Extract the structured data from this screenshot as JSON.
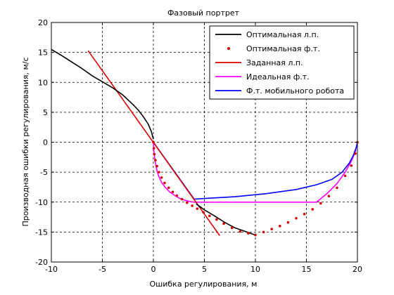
{
  "chart_data": {
    "type": "line",
    "title": "Фазовый портрет",
    "xlabel": "Ошибка регулирования, м",
    "ylabel": "Производная ошибки регулирования, м/с",
    "xlim": [
      -10,
      20
    ],
    "ylim": [
      -20,
      20
    ],
    "xticks": [
      -10,
      -5,
      0,
      5,
      10,
      15,
      20
    ],
    "yticks": [
      20,
      15,
      10,
      5,
      0,
      -5,
      -10,
      -15,
      -20
    ],
    "grid": true,
    "legend_position": "top-right",
    "series": [
      {
        "name": "Оптимальная л.п.",
        "color": "#000000",
        "style": "solid",
        "x": [
          -10,
          -9,
          -8,
          -7,
          -6,
          -5,
          -4,
          -3,
          -2,
          -1.5,
          -1,
          -0.5,
          -0.2,
          0
        ],
        "y": [
          15.5,
          14.5,
          13.4,
          12.3,
          11.1,
          10.1,
          9.1,
          7.9,
          6.3,
          5.4,
          4.3,
          3.0,
          1.8,
          0.5
        ]
      },
      {
        "name": "Оптимальная л.п.",
        "color": "#000000",
        "style": "solid",
        "x": [
          4.2,
          5,
          6,
          7,
          8,
          9,
          10
        ],
        "y": [
          -10.3,
          -11.3,
          -12.3,
          -13.4,
          -14.3,
          -14.9,
          -15.5
        ]
      },
      {
        "name": "Оптимальная ф.т.",
        "color": "#dd0000",
        "style": "dots",
        "x": [
          0,
          0.05,
          0.1,
          0.2,
          0.35,
          0.55,
          0.8,
          1.1,
          1.5,
          1.9,
          2.3,
          2.8,
          3.3,
          3.8,
          4.3,
          4.9,
          5.5,
          6.2,
          6.9,
          7.7,
          8.5,
          9.3,
          10,
          10.8,
          11.6,
          12.4,
          13.2,
          14.0,
          14.8,
          15.6,
          16.4,
          17.2,
          18.0,
          18.8,
          19.4,
          19.8,
          20
        ],
        "y": [
          0,
          -1,
          -2,
          -3,
          -4,
          -5,
          -5.9,
          -6.8,
          -7.6,
          -8.3,
          -8.9,
          -9.5,
          -10.1,
          -10.6,
          -11.1,
          -11.7,
          -12.3,
          -12.9,
          -13.6,
          -14.3,
          -14.9,
          -15.2,
          -15.5,
          -15.0,
          -14.5,
          -14.0,
          -13.4,
          -12.7,
          -12.0,
          -11.2,
          -10.2,
          -9.0,
          -7.6,
          -5.6,
          -3.9,
          -1.9,
          0
        ]
      },
      {
        "name": "Заданная л.п.",
        "color": "#dd0000",
        "style": "solid",
        "x": [
          -6.4,
          6.5
        ],
        "y": [
          15.3,
          -15.6
        ]
      },
      {
        "name": "Идеальная ф.т.",
        "color": "#ff00ff",
        "style": "solid",
        "x": [
          0,
          0.05,
          0.15,
          0.3,
          0.5,
          0.8,
          1.2,
          1.6,
          2.1,
          2.6,
          3.1,
          3.6,
          4.0,
          5,
          8,
          12,
          16,
          17,
          18,
          18.8,
          19.4,
          19.8,
          20
        ],
        "y": [
          0,
          -1.5,
          -3,
          -4.4,
          -5.6,
          -6.7,
          -7.6,
          -8.3,
          -8.9,
          -9.4,
          -9.7,
          -9.9,
          -10,
          -10,
          -10,
          -10,
          -10,
          -8.6,
          -6.9,
          -5.0,
          -3.2,
          -1.6,
          0
        ]
      },
      {
        "name": "Ф.т. мобильного робота",
        "color": "#0000ff",
        "style": "solid",
        "x": [
          0,
          4,
          5,
          8,
          11,
          14,
          16,
          17.5,
          18.5,
          19.2,
          19.6,
          19.9,
          20
        ],
        "y": [
          0,
          -9.5,
          -9.4,
          -9.1,
          -8.6,
          -7.9,
          -7.1,
          -6.2,
          -5.0,
          -3.5,
          -2.2,
          -0.8,
          0
        ]
      }
    ],
    "legend": [
      "Оптимальная л.п.",
      "Оптимальная ф.т.",
      "Заданная л.п.",
      "Идеальная ф.т.",
      "Ф.т. мобильного робота"
    ]
  }
}
